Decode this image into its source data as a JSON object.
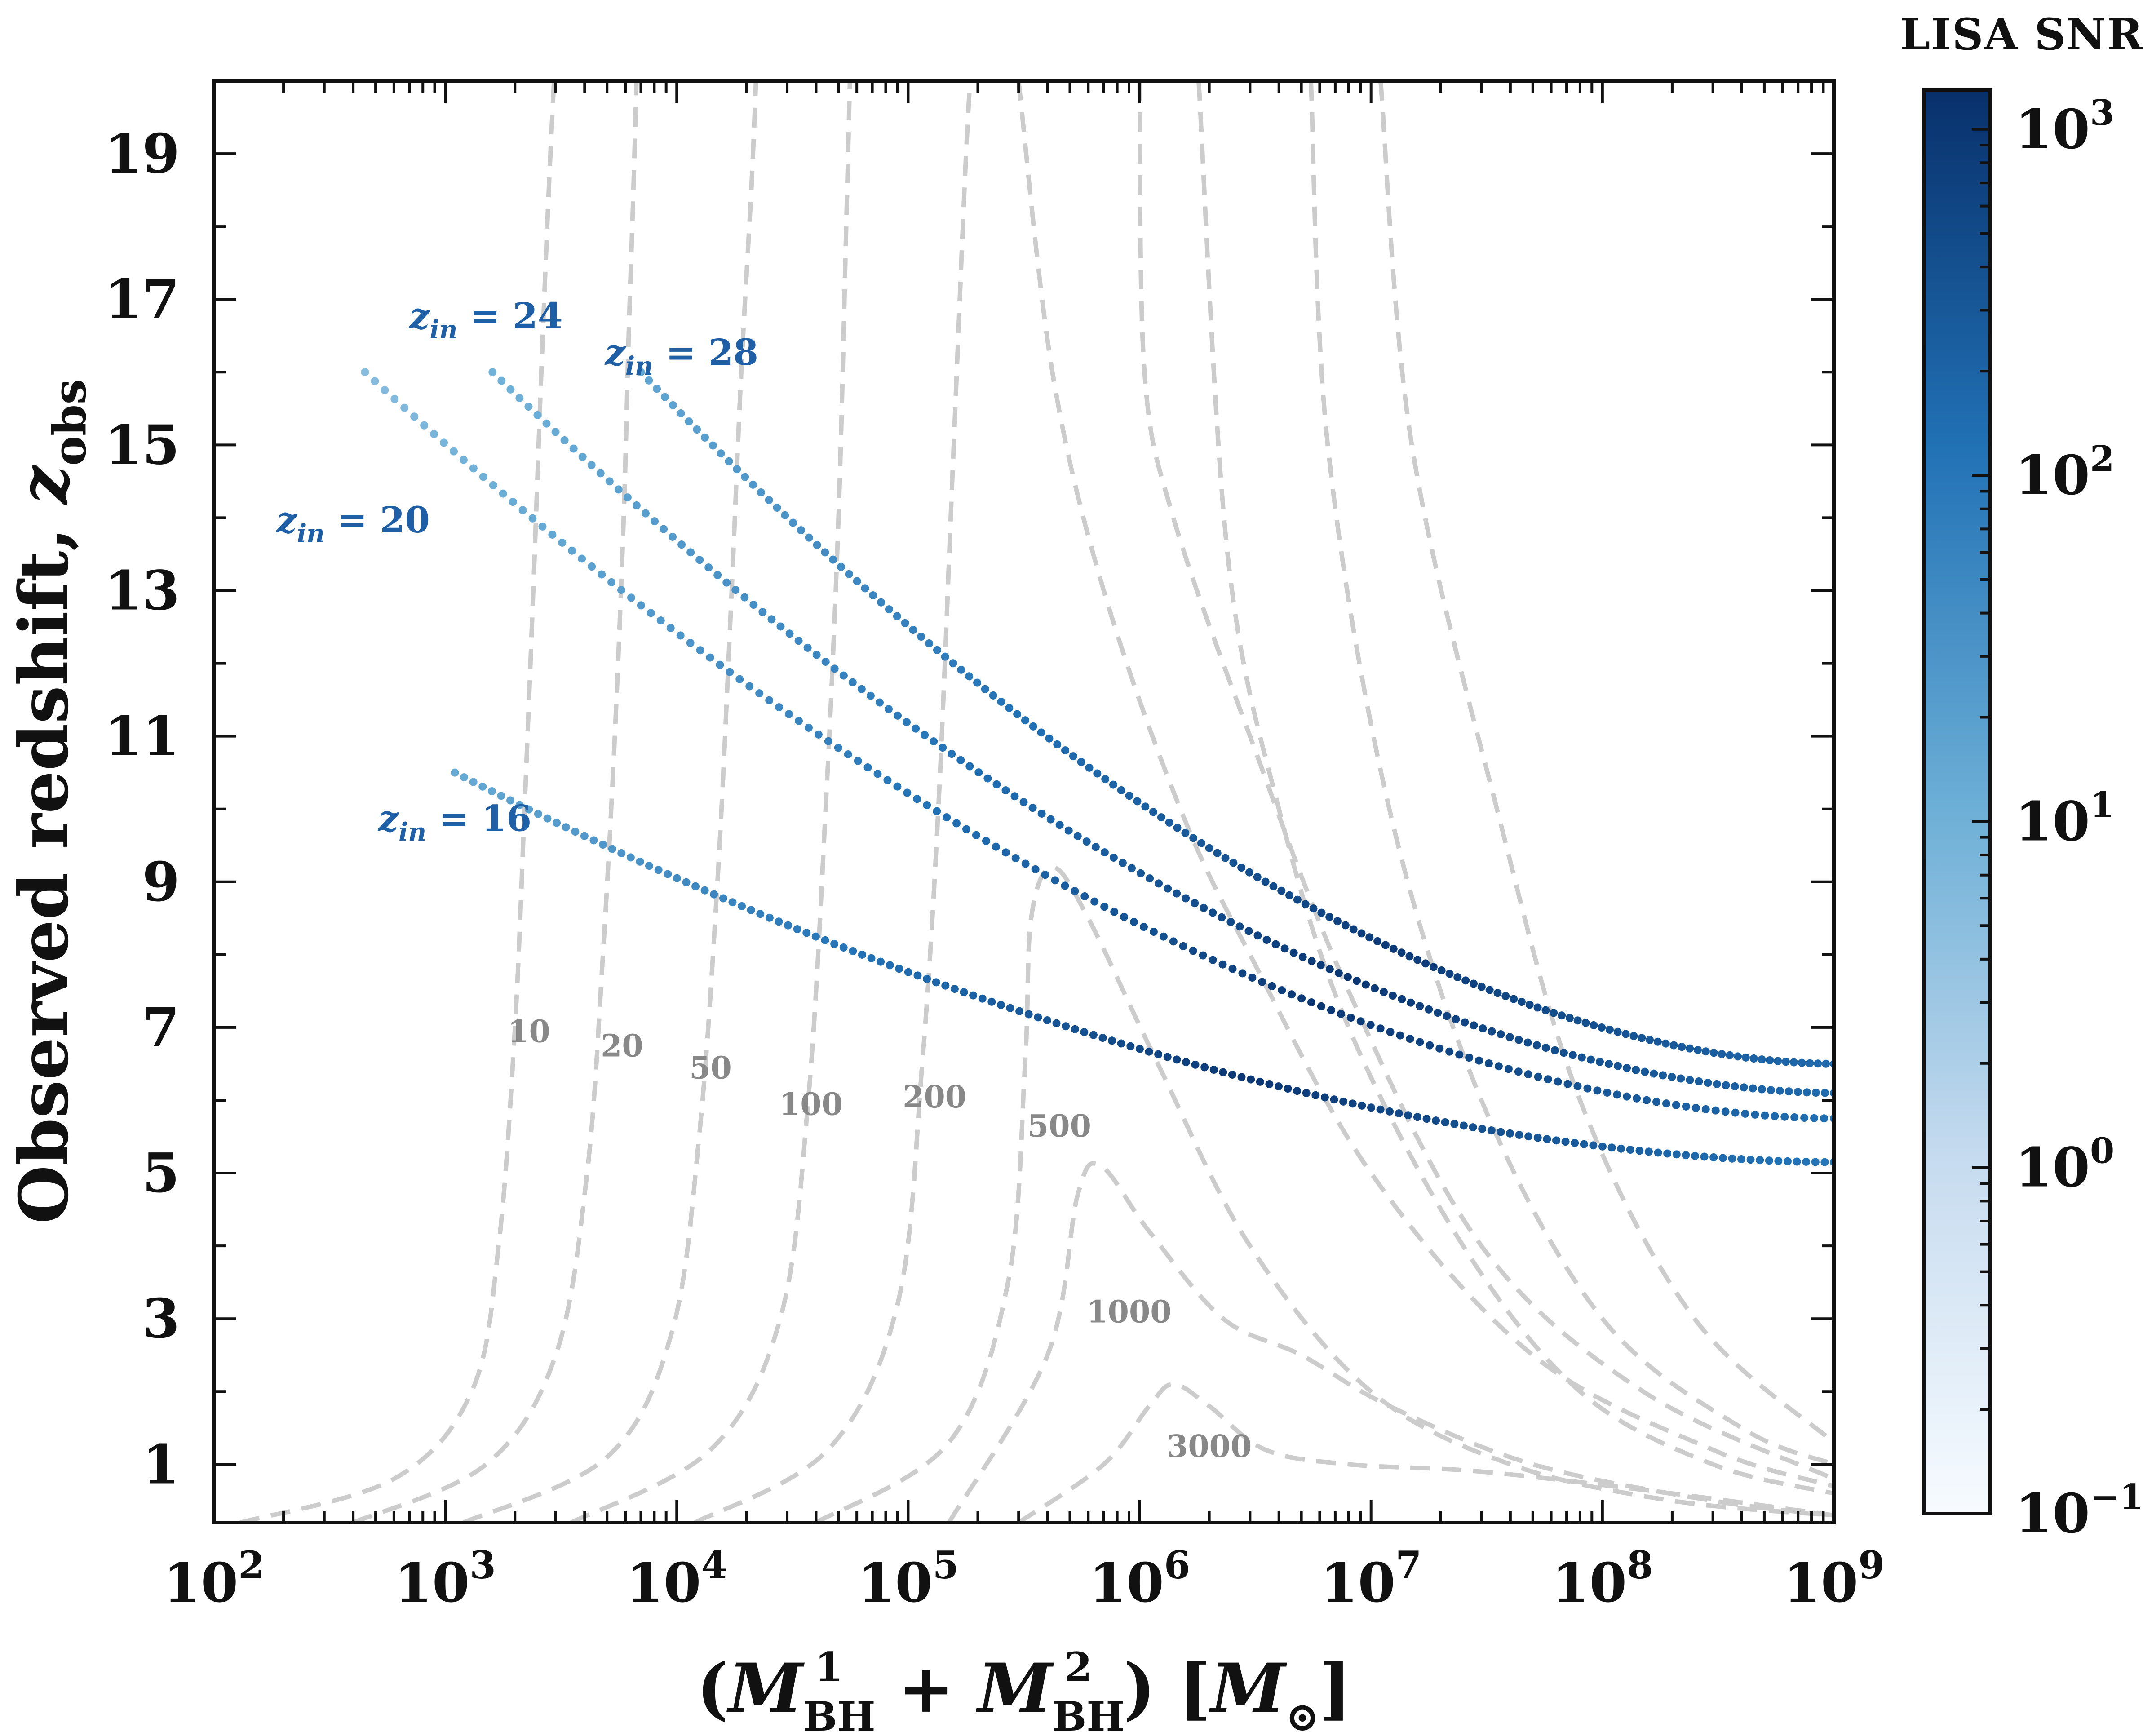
{
  "chart_data": {
    "type": "scatter",
    "xlabel": "(M¹BH + M²BH) [M⊙]",
    "ylabel": "Observed redshift, zobs",
    "xscale": "log",
    "xlim": [
      100,
      1000000000
    ],
    "ylim": [
      0.2,
      20
    ],
    "x_ticks": [
      {
        "value": 100,
        "base": "10",
        "exp": "2"
      },
      {
        "value": 1000,
        "base": "10",
        "exp": "3"
      },
      {
        "value": 10000,
        "base": "10",
        "exp": "4"
      },
      {
        "value": 100000,
        "base": "10",
        "exp": "5"
      },
      {
        "value": 1000000,
        "base": "10",
        "exp": "6"
      },
      {
        "value": 10000000,
        "base": "10",
        "exp": "7"
      },
      {
        "value": 100000000,
        "base": "10",
        "exp": "8"
      },
      {
        "value": 1000000000,
        "base": "10",
        "exp": "9"
      }
    ],
    "y_ticks": [
      "1",
      "3",
      "5",
      "7",
      "9",
      "11",
      "13",
      "15",
      "17",
      "19"
    ],
    "colorbar": {
      "title": "LISA SNR",
      "scale": "log",
      "range": [
        0.1,
        1300
      ],
      "ticks": [
        {
          "value": 0.1,
          "base": "10",
          "exp": "−1"
        },
        {
          "value": 1,
          "base": "10",
          "exp": "0"
        },
        {
          "value": 10,
          "base": "10",
          "exp": "1"
        },
        {
          "value": 100,
          "base": "10",
          "exp": "2"
        },
        {
          "value": 1000,
          "base": "10",
          "exp": "3"
        }
      ],
      "colormap": [
        "#f7fbff",
        "#c6dbef",
        "#6baed6",
        "#2171b5",
        "#08306b"
      ]
    },
    "series": [
      {
        "name": "zin = 16",
        "label_sub": "in",
        "label_value": "= 16",
        "mass_range": [
          1100,
          1000000000
        ],
        "z_range": [
          10.5,
          5.15
        ],
        "snr_peak_mass": 3000000,
        "snr_peak": 1000
      },
      {
        "name": "zin = 20",
        "label_sub": "in",
        "label_value": "= 20",
        "mass_range": [
          450,
          1000000000
        ],
        "z_range": [
          16.0,
          5.75
        ],
        "snr_peak_mass": 6000000,
        "snr_peak": 1000
      },
      {
        "name": "zin = 24",
        "label_sub": "in",
        "label_value": "= 24",
        "mass_range": [
          1600,
          1000000000
        ],
        "z_range": [
          16.0,
          6.1
        ],
        "snr_peak_mass": 8000000,
        "snr_peak": 1000
      },
      {
        "name": "zin = 28",
        "label_sub": "in",
        "label_value": "= 28",
        "mass_range": [
          7000,
          1000000000
        ],
        "z_range": [
          16.0,
          6.5
        ],
        "snr_peak_mass": 12000000,
        "snr_peak": 900
      }
    ],
    "contours": [
      {
        "level": "10",
        "label_pos": [
          2300,
          6.8
        ],
        "points": [
          [
            130,
            0.2
          ],
          [
            600,
            0.8
          ],
          [
            1300,
            2.0
          ],
          [
            1700,
            4.0
          ],
          [
            2000,
            7.0
          ],
          [
            2200,
            10.0
          ],
          [
            2400,
            13.0
          ],
          [
            2600,
            16.0
          ],
          [
            2800,
            18.5
          ],
          [
            2950,
            20
          ]
        ]
      },
      {
        "level": "20",
        "label_pos": [
          5800,
          6.6
        ],
        "points": [
          [
            400,
            0.2
          ],
          [
            1500,
            1.0
          ],
          [
            3000,
            2.5
          ],
          [
            4100,
            5.0
          ],
          [
            4800,
            8.0
          ],
          [
            5400,
            11.0
          ],
          [
            5900,
            14.0
          ],
          [
            6200,
            16.5
          ],
          [
            6500,
            18.5
          ],
          [
            6700,
            20
          ]
        ]
      },
      {
        "level": "50",
        "label_pos": [
          14000,
          6.3
        ],
        "points": [
          [
            1200,
            0.2
          ],
          [
            5000,
            1.1
          ],
          [
            9500,
            2.8
          ],
          [
            12500,
            5.5
          ],
          [
            15000,
            9.0
          ],
          [
            17000,
            12.5
          ],
          [
            19000,
            16.0
          ],
          [
            21000,
            18.5
          ],
          [
            22000,
            20
          ]
        ]
      },
      {
        "level": "100",
        "label_pos": [
          38000,
          5.8
        ],
        "points": [
          [
            3500,
            0.2
          ],
          [
            14000,
            1.2
          ],
          [
            28000,
            3.0
          ],
          [
            37000,
            6.0
          ],
          [
            44000,
            10.0
          ],
          [
            50000,
            14.0
          ],
          [
            54000,
            18.0
          ],
          [
            56000,
            20
          ]
        ]
      },
      {
        "level": "200",
        "label_pos": [
          130000,
          5.9
        ],
        "points": [
          [
            12000,
            0.2
          ],
          [
            45000,
            1.2
          ],
          [
            90000,
            3.2
          ],
          [
            115000,
            6.5
          ],
          [
            135000,
            10.0
          ],
          [
            155000,
            14.5
          ],
          [
            175000,
            18.5
          ],
          [
            185000,
            20
          ]
        ]
      },
      {
        "level": "500",
        "label_pos": [
          450000,
          5.5
        ],
        "points": [
          [
            40000,
            0.2
          ],
          [
            150000,
            1.3
          ],
          [
            270000,
            3.5
          ],
          [
            320000,
            6.5
          ],
          [
            340000,
            8.5
          ],
          [
            420000,
            9.2
          ],
          [
            600000,
            8.5
          ],
          [
            1200000,
            6.5
          ],
          [
            3000000,
            4.0
          ],
          [
            10000000,
            2.0
          ],
          [
            40000000,
            1.0
          ],
          [
            200000000,
            0.5
          ],
          [
            1000000000,
            0.3
          ]
        ]
      },
      {
        "level": "1000",
        "label_pos": [
          900000,
          2.95
        ],
        "points": [
          [
            150000,
            0.2
          ],
          [
            400000,
            2.5
          ],
          [
            540000,
            4.7
          ],
          [
            680000,
            5.1
          ],
          [
            1100000,
            4.2
          ],
          [
            2300000,
            3.0
          ],
          [
            5000000,
            2.5
          ],
          [
            12000000,
            1.8
          ],
          [
            50000000,
            1.0
          ],
          [
            300000000,
            0.5
          ],
          [
            1000000000,
            0.3
          ]
        ]
      },
      {
        "level": "3000",
        "label_pos": [
          2000000,
          1.1
        ],
        "points": [
          [
            300000,
            0.2
          ],
          [
            700000,
            1.0
          ],
          [
            1100000,
            1.8
          ],
          [
            1400000,
            2.1
          ],
          [
            2000000,
            1.8
          ],
          [
            3500000,
            1.2
          ],
          [
            8000000,
            1.0
          ],
          [
            30000000,
            0.9
          ],
          [
            200000000,
            0.6
          ],
          [
            1000000000,
            0.3
          ]
        ]
      },
      {
        "level": "",
        "points": [
          [
            1800000,
            20
          ],
          [
            2400000,
            13.5
          ],
          [
            4000000,
            10.0
          ],
          [
            8000000,
            7.0
          ],
          [
            25000000,
            4.0
          ],
          [
            80000000,
            2.0
          ],
          [
            300000000,
            1.0
          ],
          [
            1000000000,
            0.6
          ]
        ]
      },
      {
        "level": "",
        "points": [
          [
            5500000,
            20
          ],
          [
            6500000,
            15.0
          ],
          [
            12000000,
            10.0
          ],
          [
            30000000,
            6.0
          ],
          [
            100000000,
            3.0
          ],
          [
            400000000,
            1.5
          ],
          [
            1000000000,
            1.0
          ]
        ]
      },
      {
        "level": "",
        "points": [
          [
            11000000,
            20
          ],
          [
            15000000,
            15.0
          ],
          [
            35000000,
            10.0
          ],
          [
            80000000,
            6.0
          ],
          [
            250000000,
            3.0
          ],
          [
            1000000000,
            1.3
          ]
        ]
      },
      {
        "level": "",
        "points": [
          [
            1000000,
            20
          ],
          [
            1050000,
            16.0
          ],
          [
            1400000,
            14.0
          ],
          [
            3000000,
            11.0
          ],
          [
            8000000,
            7.5
          ],
          [
            30000000,
            4.0
          ],
          [
            150000000,
            2.0
          ],
          [
            1000000000,
            0.8
          ]
        ]
      },
      {
        "level": "",
        "points": [
          [
            300000,
            20
          ],
          [
            420000,
            16.0
          ],
          [
            700000,
            13.0
          ],
          [
            1500000,
            10.0
          ],
          [
            3000000,
            8.0
          ],
          [
            10000000,
            5.0
          ],
          [
            50000000,
            2.5
          ],
          [
            300000000,
            1.2
          ],
          [
            1000000000,
            0.7
          ]
        ]
      }
    ]
  }
}
